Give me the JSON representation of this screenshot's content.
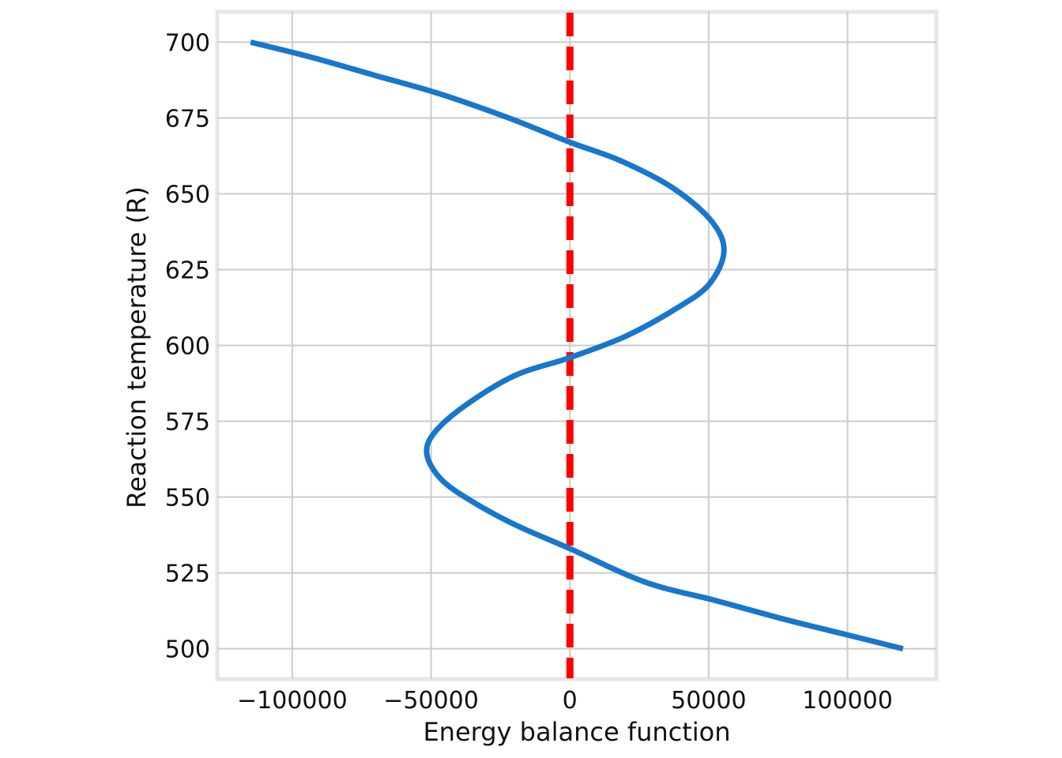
{
  "chart_data": {
    "type": "line",
    "xlabel": "Energy balance function",
    "ylabel": "Reaction temperature (R)",
    "xlim": [
      -127000,
      132000
    ],
    "ylim": [
      490,
      710
    ],
    "xticks": [
      -100000,
      -50000,
      0,
      50000,
      100000
    ],
    "xtick_labels": [
      "−100000",
      "−50000",
      "0",
      "50000",
      "100000"
    ],
    "yticks": [
      500,
      525,
      550,
      575,
      600,
      625,
      650,
      675,
      700
    ],
    "ytick_labels": [
      "500",
      "525",
      "550",
      "575",
      "600",
      "625",
      "650",
      "675",
      "700"
    ],
    "grid": true,
    "series": [
      {
        "color": "#1777cc",
        "points": [
          {
            "x": 120000,
            "y": 500
          },
          {
            "x": 98000,
            "y": 505
          },
          {
            "x": 76000,
            "y": 510
          },
          {
            "x": 52000,
            "y": 516
          },
          {
            "x": 27000,
            "y": 522
          },
          {
            "x": 0,
            "y": 533
          },
          {
            "x": -20000,
            "y": 541
          },
          {
            "x": -36000,
            "y": 549
          },
          {
            "x": -46500,
            "y": 556
          },
          {
            "x": -51500,
            "y": 564
          },
          {
            "x": -49000,
            "y": 571
          },
          {
            "x": -38000,
            "y": 580
          },
          {
            "x": -20000,
            "y": 590
          },
          {
            "x": 0,
            "y": 596
          },
          {
            "x": 20000,
            "y": 603
          },
          {
            "x": 38000,
            "y": 612
          },
          {
            "x": 50000,
            "y": 620
          },
          {
            "x": 55500,
            "y": 631
          },
          {
            "x": 51000,
            "y": 641
          },
          {
            "x": 37000,
            "y": 652
          },
          {
            "x": 18000,
            "y": 661
          },
          {
            "x": 0,
            "y": 667
          },
          {
            "x": -22000,
            "y": 675
          },
          {
            "x": -47000,
            "y": 683
          },
          {
            "x": -70000,
            "y": 689
          },
          {
            "x": -93000,
            "y": 695
          },
          {
            "x": -115000,
            "y": 700
          }
        ]
      }
    ],
    "reference_line": {
      "x": 0,
      "color": "#ff0000",
      "style": "dashed"
    }
  }
}
